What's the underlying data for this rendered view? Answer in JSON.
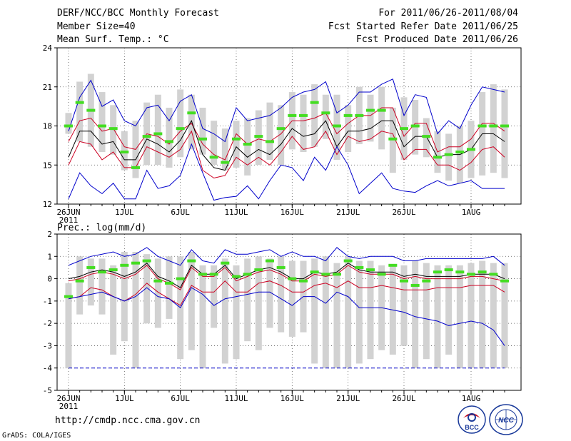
{
  "header": {
    "title": "DERF/NCC/BCC Monthly Forecast",
    "member_size": "Member Size=40",
    "variable": "Mean Surf. Temp.: °C",
    "forecast_period": "For 2011/06/26-2011/08/04",
    "started_refer": "Fcst Started Refer Date 2011/06/25",
    "produced": "Fcst Produced Date 2011/06/26"
  },
  "footer": {
    "url": "http://cmdp.ncc.cma.gov.cn",
    "grads": "GrADS: COLA/IGES",
    "logo_bcc": "BCC",
    "logo_ncc": "NCC"
  },
  "colors": {
    "max": "#0000cc",
    "min": "#0000cc",
    "spread": "#cc0022",
    "mean": "#000000",
    "obs": "#44dd22",
    "box": "#d2d2d2",
    "grid": "#555555"
  },
  "chart_data": [
    {
      "type": "box-line",
      "title": "Mean Surf. Temp.: °C",
      "ylabel": "°C",
      "ylim": [
        12,
        24
      ],
      "yticks": [
        12,
        15,
        18,
        21,
        24
      ],
      "xticks": [
        {
          "day": 0,
          "label": "26JUN",
          "sub": "2011"
        },
        {
          "day": 5,
          "label": "1JUL"
        },
        {
          "day": 10,
          "label": "6JUL"
        },
        {
          "day": 15,
          "label": "11JUL"
        },
        {
          "day": 20,
          "label": "16JUL"
        },
        {
          "day": 25,
          "label": "21JUL"
        },
        {
          "day": 30,
          "label": "26JUL"
        },
        {
          "day": 36,
          "label": "1AUG"
        }
      ],
      "days": 40,
      "box_low": [
        17.4,
        16.8,
        16.4,
        16.0,
        15.8,
        14.6,
        14.0,
        15.0,
        15.0,
        14.8,
        15.6,
        16.2,
        15.8,
        15.0,
        14.6,
        14.8,
        14.2,
        15.0,
        15.4,
        15.0,
        16.2,
        16.0,
        16.4,
        17.0,
        15.4,
        16.0,
        16.6,
        16.8,
        16.2,
        14.4,
        15.4,
        15.8,
        15.6,
        14.4,
        13.8,
        13.6,
        14.0,
        14.2,
        14.4,
        14.0
      ],
      "box_high": [
        19.0,
        21.4,
        22.0,
        20.6,
        19.6,
        17.6,
        18.4,
        19.8,
        20.4,
        19.4,
        20.8,
        20.4,
        19.4,
        18.4,
        17.8,
        18.4,
        18.6,
        19.2,
        19.8,
        19.6,
        20.6,
        20.4,
        21.2,
        20.4,
        20.4,
        19.6,
        21.0,
        20.4,
        21.0,
        19.4,
        20.2,
        20.0,
        18.6,
        17.6,
        17.4,
        18.0,
        18.4,
        20.6,
        21.2,
        20.8
      ],
      "series": [
        {
          "name": "max",
          "values": [
            17.6,
            20.2,
            21.5,
            19.5,
            20.0,
            18.4,
            18.0,
            19.4,
            19.6,
            18.4,
            19.9,
            20.4,
            17.8,
            17.4,
            16.8,
            19.4,
            18.4,
            18.6,
            18.8,
            19.4,
            20.2,
            20.6,
            20.8,
            21.4,
            19.0,
            19.6,
            20.6,
            20.6,
            21.2,
            21.6,
            18.8,
            20.4,
            20.2,
            17.4,
            18.4,
            17.8,
            19.6,
            21.0,
            20.8,
            20.6
          ]
        },
        {
          "name": "spread_high",
          "values": [
            16.8,
            18.4,
            18.6,
            17.6,
            17.8,
            16.4,
            16.2,
            17.4,
            17.2,
            16.6,
            17.6,
            18.2,
            16.6,
            15.8,
            15.4,
            17.4,
            16.6,
            17.0,
            16.8,
            17.4,
            18.4,
            18.4,
            18.6,
            19.0,
            17.4,
            18.2,
            18.8,
            18.8,
            19.4,
            19.4,
            17.2,
            18.2,
            18.2,
            16.0,
            16.4,
            16.4,
            17.0,
            18.2,
            18.2,
            17.6
          ]
        },
        {
          "name": "mean",
          "values": [
            15.6,
            17.6,
            17.6,
            16.6,
            16.8,
            15.4,
            15.4,
            17.0,
            16.6,
            16.0,
            16.9,
            18.4,
            15.8,
            14.8,
            14.6,
            16.4,
            15.6,
            16.2,
            15.8,
            16.6,
            17.8,
            17.2,
            17.4,
            18.4,
            16.4,
            17.6,
            17.6,
            17.8,
            18.4,
            18.4,
            16.4,
            17.2,
            17.2,
            15.6,
            15.8,
            15.8,
            16.2,
            17.4,
            17.4,
            16.8
          ]
        },
        {
          "name": "spread_low",
          "values": [
            15.0,
            16.8,
            16.6,
            15.4,
            16.0,
            14.8,
            14.8,
            16.4,
            16.0,
            15.6,
            16.2,
            17.6,
            14.6,
            14.0,
            14.2,
            15.6,
            15.0,
            15.6,
            15.0,
            16.0,
            17.2,
            16.2,
            16.4,
            17.6,
            15.8,
            17.2,
            16.8,
            17.0,
            17.6,
            17.4,
            15.4,
            16.2,
            16.2,
            15.0,
            15.0,
            14.6,
            15.2,
            16.2,
            16.4,
            15.6
          ]
        },
        {
          "name": "min",
          "values": [
            12.4,
            14.4,
            13.4,
            12.8,
            13.6,
            12.4,
            12.4,
            14.6,
            13.2,
            13.4,
            14.2,
            16.6,
            14.4,
            12.3,
            12.5,
            12.6,
            13.4,
            12.4,
            13.8,
            15.0,
            14.8,
            13.8,
            15.6,
            14.6,
            16.4,
            15.0,
            12.8,
            13.6,
            14.4,
            13.2,
            13.0,
            12.9,
            13.4,
            13.8,
            13.4,
            13.6,
            13.8,
            13.2,
            13.2,
            13.2
          ]
        },
        {
          "name": "observed",
          "values": [
            18.0,
            19.8,
            19.2,
            18.0,
            17.8,
            16.0,
            14.8,
            17.2,
            17.4,
            16.8,
            17.8,
            19.0,
            17.0,
            15.6,
            15.2,
            17.0,
            16.6,
            17.2,
            16.8,
            17.8,
            18.8,
            18.8,
            19.8,
            19.0,
            18.0,
            18.8,
            18.8,
            19.2,
            19.2,
            17.0,
            17.8,
            18.0,
            17.2,
            15.6,
            15.8,
            16.0,
            16.2,
            18.0,
            18.0,
            18.0
          ]
        }
      ]
    },
    {
      "type": "box-line",
      "title": "Prec.: log(mm/d)",
      "ylabel": "log(mm/d)",
      "ylim": [
        -5,
        2
      ],
      "yticks": [
        -5,
        -4,
        -3,
        -2,
        -1,
        0,
        1,
        2
      ],
      "xticks": [
        {
          "day": 0,
          "label": "26JUN",
          "sub": "2011"
        },
        {
          "day": 5,
          "label": "1JUL"
        },
        {
          "day": 10,
          "label": "6JUL"
        },
        {
          "day": 15,
          "label": "11JUL"
        },
        {
          "day": 20,
          "label": "16JUL"
        },
        {
          "day": 25,
          "label": "21JUL"
        },
        {
          "day": 30,
          "label": "26JUL"
        },
        {
          "day": 36,
          "label": "1AUG"
        }
      ],
      "days": 40,
      "box_low": [
        -4.0,
        -1.6,
        -1.2,
        -1.6,
        -3.4,
        -2.8,
        -4.0,
        -2.0,
        -2.2,
        -1.8,
        -3.6,
        -3.2,
        -4.0,
        -2.2,
        -3.8,
        -3.6,
        -2.8,
        -3.2,
        -2.2,
        -2.4,
        -2.6,
        -2.4,
        -3.8,
        -4.0,
        -4.0,
        -4.0,
        -3.8,
        -3.6,
        -3.2,
        -3.4,
        -3.0,
        -4.0,
        -3.6,
        -4.0,
        -3.4,
        -4.0,
        -4.0,
        -4.0,
        -4.0,
        -4.0
      ],
      "box_high": [
        -0.2,
        1.0,
        0.9,
        0.9,
        0.6,
        1.2,
        1.2,
        1.1,
        0.9,
        1.0,
        1.0,
        1.2,
        0.6,
        0.6,
        0.9,
        0.6,
        0.9,
        1.0,
        0.9,
        1.0,
        0.8,
        0.8,
        0.9,
        1.0,
        0.7,
        1.0,
        0.8,
        0.8,
        0.6,
        0.6,
        0.6,
        0.8,
        0.7,
        0.6,
        0.6,
        0.6,
        0.7,
        0.8,
        0.7,
        0.7
      ],
      "series": [
        {
          "name": "max",
          "values": [
            0.6,
            0.8,
            1.0,
            1.1,
            1.2,
            1.0,
            1.1,
            1.4,
            1.0,
            0.8,
            0.6,
            1.3,
            0.8,
            0.7,
            1.3,
            1.1,
            1.1,
            1.2,
            1.3,
            1.0,
            1.2,
            1.0,
            1.0,
            0.8,
            1.4,
            1.0,
            0.9,
            1.0,
            1.0,
            1.0,
            0.8,
            0.8,
            0.9,
            0.9,
            0.9,
            0.9,
            0.9,
            0.9,
            1.0,
            0.6
          ]
        },
        {
          "name": "mean",
          "values": [
            0.0,
            0.1,
            0.3,
            0.4,
            0.3,
            0.1,
            0.3,
            0.7,
            0.1,
            -0.1,
            -0.4,
            0.6,
            0.2,
            0.2,
            0.6,
            0.0,
            0.2,
            0.4,
            0.5,
            0.3,
            0.0,
            0.0,
            0.3,
            0.2,
            0.3,
            0.7,
            0.4,
            0.3,
            0.3,
            0.3,
            0.1,
            0.2,
            0.1,
            0.1,
            0.1,
            0.1,
            0.2,
            0.2,
            0.2,
            0.0
          ]
        },
        {
          "name": "spread_high",
          "values": [
            -0.1,
            0.0,
            0.2,
            0.3,
            0.2,
            0.0,
            0.2,
            0.6,
            0.0,
            -0.2,
            -0.5,
            0.5,
            0.1,
            0.1,
            0.5,
            -0.1,
            0.1,
            0.3,
            0.4,
            0.2,
            -0.1,
            -0.1,
            0.2,
            0.1,
            0.2,
            0.6,
            0.3,
            0.2,
            0.2,
            0.2,
            0.0,
            0.1,
            0.0,
            0.0,
            0.0,
            0.0,
            0.1,
            0.1,
            0.0,
            -0.1
          ]
        },
        {
          "name": "spread_low",
          "values": [
            -0.9,
            -0.8,
            -0.4,
            -0.5,
            -0.8,
            -1.0,
            -0.7,
            -0.2,
            -0.6,
            -0.9,
            -1.2,
            -0.3,
            -0.6,
            -0.6,
            -0.1,
            -0.6,
            -0.6,
            -0.2,
            -0.1,
            -0.3,
            -0.6,
            -0.6,
            -0.3,
            -0.2,
            -0.4,
            -0.1,
            -0.4,
            -0.4,
            -0.3,
            -0.4,
            -0.5,
            -0.5,
            -0.5,
            -0.4,
            -0.4,
            -0.4,
            -0.3,
            -0.3,
            -0.3,
            -0.6
          ]
        },
        {
          "name": "min",
          "values": [
            -0.9,
            -0.8,
            -0.7,
            -0.6,
            -0.8,
            -1.0,
            -0.8,
            -0.4,
            -0.8,
            -0.9,
            -1.3,
            -0.4,
            -0.7,
            -1.2,
            -0.9,
            -0.8,
            -0.7,
            -0.6,
            -0.6,
            -0.9,
            -1.2,
            -0.8,
            -0.8,
            -1.1,
            -0.6,
            -0.8,
            -1.3,
            -1.3,
            -1.3,
            -1.4,
            -1.5,
            -1.7,
            -1.8,
            -1.9,
            -2.1,
            -2.0,
            -1.9,
            -2.0,
            -2.3,
            -3.0
          ]
        },
        {
          "name": "observed",
          "values": [
            -0.8,
            -0.1,
            0.5,
            0.3,
            0.4,
            0.6,
            0.7,
            0.8,
            -0.1,
            -0.2,
            0.0,
            0.8,
            0.2,
            0.2,
            0.7,
            0.1,
            0.2,
            0.4,
            0.8,
            0.5,
            0.0,
            -0.1,
            0.3,
            0.2,
            0.2,
            0.8,
            0.5,
            0.4,
            0.2,
            0.6,
            -0.1,
            -0.3,
            -0.1,
            0.3,
            0.4,
            0.3,
            0.2,
            0.3,
            0.2,
            -0.1
          ]
        },
        {
          "name": "floor",
          "values": [
            -4.0,
            -4.0,
            -4.0,
            -4.0,
            -4.0,
            -4.0,
            -4.0,
            -4.0,
            -4.0,
            -4.0,
            -4.0,
            -4.0,
            -4.0,
            -4.0,
            -4.0,
            -4.0,
            -4.0,
            -4.0,
            -4.0,
            -4.0,
            -4.0,
            -4.0,
            -4.0,
            -4.0,
            -4.0,
            -4.0,
            -4.0,
            -4.0,
            -4.0,
            -4.0,
            -4.0,
            -4.0,
            -4.0,
            -4.0,
            -4.0,
            -4.0,
            -4.0,
            -4.0,
            -4.0,
            -4.0
          ]
        }
      ]
    }
  ]
}
